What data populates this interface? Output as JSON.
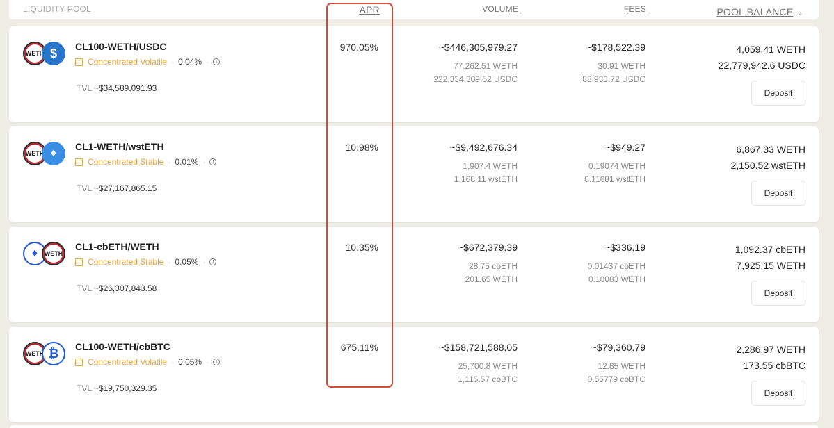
{
  "header": {
    "pool": "LIQUIDITY POOL",
    "apr": "APR",
    "volume": "VOLUME",
    "fees": "FEES",
    "balance": "POOL BALANCE",
    "balance_chevron": "⌄"
  },
  "pools": [
    {
      "token_a": "WETH",
      "token_b": "$",
      "name": "CL100-WETH/USDC",
      "type": "Concentrated Volatile",
      "fee": "0.04%",
      "tvl_label": "TVL",
      "tvl": "~$34,589,091.93",
      "apr": "970.05%",
      "volume": "~$446,305,979.27",
      "volume_a": "77,262.51 WETH",
      "volume_b": "222,334,309.52 USDC",
      "fees": "~$178,522.39",
      "fees_a": "30.91 WETH",
      "fees_b": "88,933.72 USDC",
      "balance_a": "4,059.41 WETH",
      "balance_b": "22,779,942.6 USDC",
      "deposit": "Deposit"
    },
    {
      "token_a": "WETH",
      "token_b": "♦",
      "name": "CL1-WETH/wstETH",
      "type": "Concentrated Stable",
      "fee": "0.01%",
      "tvl_label": "TVL",
      "tvl": "~$27,167,865.15",
      "apr": "10.98%",
      "volume": "~$9,492,676.34",
      "volume_a": "1,907.4 WETH",
      "volume_b": "1,168.11 wstETH",
      "fees": "~$949.27",
      "fees_a": "0.19074 WETH",
      "fees_b": "0.11681 wstETH",
      "balance_a": "6,867.33 WETH",
      "balance_b": "2,150.52 wstETH",
      "deposit": "Deposit"
    },
    {
      "token_a": "♦",
      "token_b": "WETH",
      "name": "CL1-cbETH/WETH",
      "type": "Concentrated Stable",
      "fee": "0.05%",
      "tvl_label": "TVL",
      "tvl": "~$26,307,843.58",
      "apr": "10.35%",
      "volume": "~$672,379.39",
      "volume_a": "28.75 cbETH",
      "volume_b": "201.65 WETH",
      "fees": "~$336.19",
      "fees_a": "0.01437 cbETH",
      "fees_b": "0.10083 WETH",
      "balance_a": "1,092.37 cbETH",
      "balance_b": "7,925.15 WETH",
      "deposit": "Deposit"
    },
    {
      "token_a": "WETH",
      "token_b": "₿",
      "name": "CL100-WETH/cbBTC",
      "type": "Concentrated Volatile",
      "fee": "0.05%",
      "tvl_label": "TVL",
      "tvl": "~$19,750,329.35",
      "apr": "675.11%",
      "volume": "~$158,721,588.05",
      "volume_a": "25,700.8 WETH",
      "volume_b": "1,115.57 cbBTC",
      "fees": "~$79,360.79",
      "fees_a": "12.85 WETH",
      "fees_b": "0.55779 cbBTC",
      "balance_a": "2,286.97 WETH",
      "balance_b": "173.55 cbBTC",
      "deposit": "Deposit"
    }
  ],
  "colors": {
    "background": "#efece6",
    "accent_orange": "#e2a33c",
    "highlight_red": "#d14a3a",
    "weth_red": "#c3222e",
    "usdc_blue": "#2775ca"
  }
}
